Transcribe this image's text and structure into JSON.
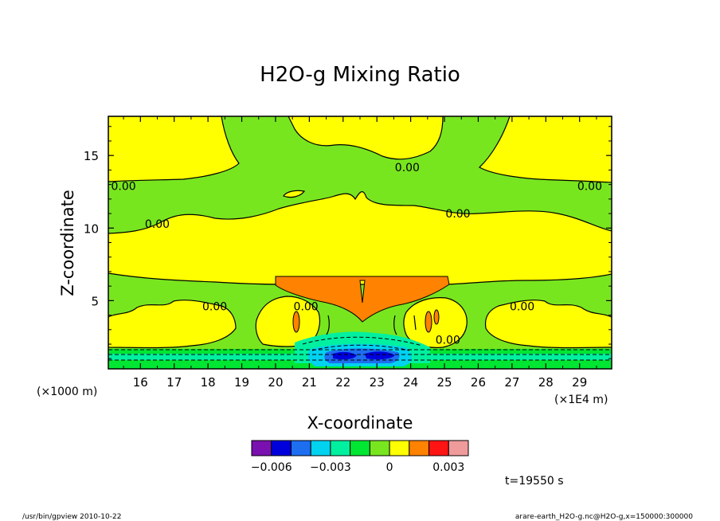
{
  "chart_data": {
    "type": "heatmap",
    "title": "H2O-g Mixing Ratio",
    "xlabel": "X-coordinate",
    "ylabel": "Z-coordinate",
    "x_unit_left": "(×1000 m)",
    "x_unit_right": "(×1E4 m)",
    "x_ticks": [
      "16",
      "17",
      "18",
      "19",
      "20",
      "21",
      "22",
      "23",
      "24",
      "25",
      "26",
      "27",
      "28",
      "29"
    ],
    "x_tick_values": [
      16,
      17,
      18,
      19,
      20,
      21,
      22,
      23,
      24,
      25,
      26,
      27,
      28,
      29
    ],
    "xlim": [
      15.05,
      29.95
    ],
    "y_ticks": [
      "5",
      "10",
      "15"
    ],
    "y_tick_values": [
      5,
      10,
      15
    ],
    "ylim": [
      0.3,
      17.7
    ],
    "contour_labels": [
      {
        "text": "0.00",
        "x": 23.9,
        "y": 14.2
      },
      {
        "text": "0.00",
        "x": 15.5,
        "y": 12.9
      },
      {
        "text": "0.00",
        "x": 29.3,
        "y": 12.9
      },
      {
        "text": "0.00",
        "x": 16.5,
        "y": 10.3
      },
      {
        "text": "0.00",
        "x": 25.4,
        "y": 11.0
      },
      {
        "text": "0.00",
        "x": 18.2,
        "y": 4.6
      },
      {
        "text": "0.00",
        "x": 20.9,
        "y": 4.6
      },
      {
        "text": "0.00",
        "x": 27.3,
        "y": 4.6
      },
      {
        "text": "0.00",
        "x": 25.1,
        "y": 2.3
      }
    ],
    "colorbar": {
      "colors": [
        "#7a10b0",
        "#0000dc",
        "#1e6ef0",
        "#00d2f0",
        "#00f0a0",
        "#00e632",
        "#78e61e",
        "#ffff00",
        "#ff8200",
        "#ff1414",
        "#f09b9b"
      ],
      "labels": [
        "−0.006",
        "−0.003",
        "0",
        "0.003"
      ],
      "label_values": [
        -0.006,
        -0.003,
        0,
        0.003
      ],
      "vmin": -0.007,
      "vmax": 0.004
    },
    "levels": {
      "near_zero": "#78e61e",
      "slightly_positive": "#ffff00",
      "positive": "#ff8200",
      "negative_low": "#00e632",
      "negative_mid": "#00f0a0",
      "negative": "#00d2f0",
      "strong_negative": "#0000dc"
    }
  },
  "time_label": "t=19550 s",
  "footer": {
    "left": "/usr/bin/gpview   2010-10-22",
    "right": "arare-earth_H2O-g.nc@H2O-g,x=150000:300000"
  }
}
